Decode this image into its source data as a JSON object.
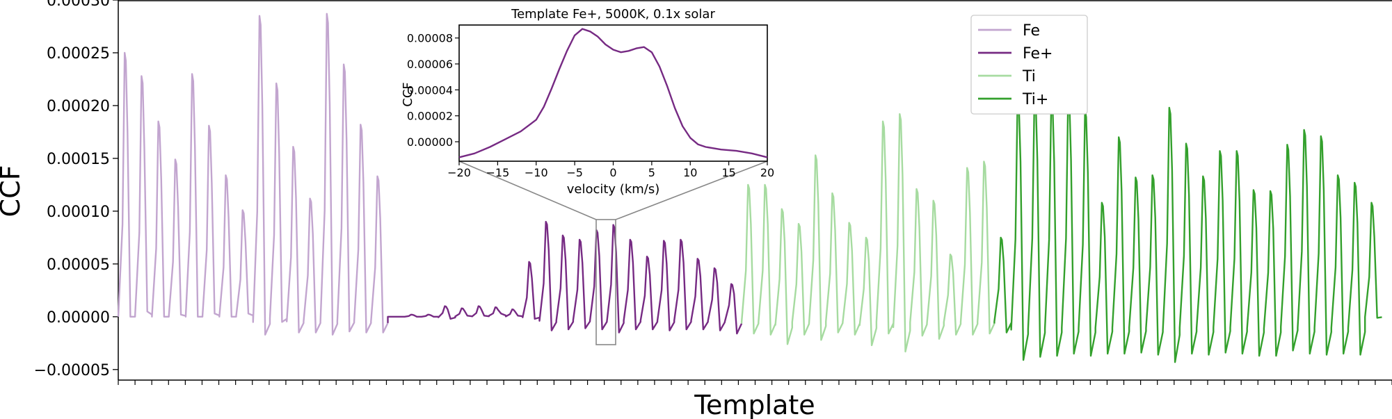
{
  "chart_data": [
    {
      "id": "main",
      "type": "line",
      "title": "",
      "xlabel": "Template",
      "ylabel": "CCF",
      "ylim": [
        -6e-05,
        0.0003
      ],
      "yticks": [
        -5e-05,
        0.0,
        5e-05,
        0.0001,
        0.00015,
        0.0002,
        0.00025,
        0.0003
      ],
      "ytick_labels": [
        "−0.00005",
        "0.00000",
        "0.00005",
        "0.00010",
        "0.00015",
        "0.00020",
        "0.00025",
        "0.00030"
      ],
      "xtick_count": 76,
      "xtick_labels_shown": false,
      "grid": false,
      "legend": {
        "position": "top-right",
        "entries": [
          "Fe",
          "Fe+",
          "Ti",
          "Ti+"
        ]
      },
      "series": [
        {
          "name": "Fe",
          "color": "#c2a5cf",
          "peaks": [
            0.00025,
            0.000228,
            0.000185,
            0.000149,
            0.00023,
            0.000181,
            0.000134,
            0.000101,
            0.000285,
            0.000221,
            0.000161,
            0.000112,
            0.000287,
            0.000239,
            0.000182,
            0.000133
          ],
          "troughs": [
            0.0,
            5e-06,
            0.0,
            2e-06,
            0.0,
            3e-06,
            0.0,
            3e-06,
            -1.7e-05,
            -5e-06,
            -1.5e-05,
            -1.5e-05,
            -1.7e-05,
            -1.4e-05,
            -1.5e-05,
            -1.5e-05
          ]
        },
        {
          "name": "Fe+",
          "color": "#762a83",
          "peaks": [
            0.0,
            2e-06,
            2e-06,
            1e-05,
            8e-06,
            1e-05,
            9e-06,
            7e-06,
            5.2e-05,
            9e-05,
            7.7e-05,
            7.3e-05,
            8.2e-05,
            8.7e-05,
            7.3e-05,
            5.7e-05,
            7.2e-05,
            7.3e-05,
            5.5e-05,
            4.6e-05,
            3.1e-05
          ],
          "troughs": [
            0.0,
            0.0,
            0.0,
            -2e-06,
            1e-06,
            1e-06,
            3e-06,
            1e-06,
            -2e-06,
            -1.3e-05,
            -1.2e-05,
            -1.1e-05,
            -1.2e-05,
            -1.5e-05,
            -1.2e-05,
            -1.2e-05,
            -1.3e-05,
            -1.2e-05,
            -1.2e-05,
            -1.3e-05,
            -1.6e-05
          ]
        },
        {
          "name": "Ti",
          "color": "#a6dba0",
          "peaks": [
            0.000125,
            0.000125,
            0.000102,
            8.8e-05,
            0.000153,
            0.000117,
            8.9e-05,
            7.5e-05,
            0.000185,
            0.000192,
            0.000121,
            0.00011,
            5.9e-05,
            0.000141,
            0.000147
          ],
          "troughs": [
            -1.6e-05,
            -1.7e-05,
            -2.6e-05,
            -1.7e-05,
            -2.2e-05,
            -1.5e-05,
            -1.7e-05,
            -2.7e-05,
            -1.6e-05,
            -3.3e-05,
            -1.8e-05,
            -2.1e-05,
            -1.7e-05,
            -1.7e-05,
            -1.6e-05
          ]
        },
        {
          "name": "Ti+",
          "color": "#33a02c",
          "peaks": [
            7.5e-05,
            0.00021,
            0.000212,
            0.000209,
            0.000212,
            0.000195,
            0.000108,
            0.00017,
            0.000132,
            0.000134,
            0.000198,
            0.000164,
            0.000133,
            0.000157,
            0.000157,
            0.00012,
            0.000119,
            0.000163,
            0.000177,
            0.000171,
            0.000134,
            0.000127,
            0.000108
          ],
          "troughs": [
            -1.5e-05,
            -4.1e-05,
            -3.8e-05,
            -3.7e-05,
            -3.5e-05,
            -3.7e-05,
            -3.5e-05,
            -3.5e-05,
            -3.4e-05,
            -3.6e-05,
            -4.3e-05,
            -3.5e-05,
            -3.6e-05,
            -3.4e-05,
            -3.5e-05,
            -3.7e-05,
            -3.7e-05,
            -3.2e-05,
            -3.5e-05,
            -3.6e-05,
            -3.5e-05,
            -3.6e-05,
            -1e-06
          ]
        }
      ]
    },
    {
      "id": "inset",
      "type": "line",
      "title": "Template Fe+, 5000K, 0.1x solar",
      "xlabel": "velocity (km/s)",
      "ylabel": "CCF",
      "xlim": [
        -20,
        20
      ],
      "ylim": [
        -1.5e-05,
        9e-05
      ],
      "xticks": [
        -20,
        -15,
        -10,
        -5,
        0,
        5,
        10,
        15,
        20
      ],
      "xtick_labels": [
        "−20",
        "−15",
        "−10",
        "−5",
        "0",
        "5",
        "10",
        "15",
        "20"
      ],
      "yticks": [
        0.0,
        2e-05,
        4e-05,
        6e-05,
        8e-05
      ],
      "ytick_labels": [
        "0.00000",
        "0.00002",
        "0.00004",
        "0.00006",
        "0.00008"
      ],
      "series": [
        {
          "name": "Fe+",
          "color": "#762a83",
          "x": [
            -20,
            -18,
            -16,
            -14,
            -12,
            -10,
            -9,
            -8,
            -7,
            -6,
            -5,
            -4,
            -3,
            -2,
            -1,
            0,
            1,
            2,
            3,
            4,
            5,
            6,
            7,
            8,
            9,
            10,
            11,
            12,
            14,
            16,
            18,
            20
          ],
          "y": [
            -1.2e-05,
            -9e-06,
            -4e-06,
            2e-06,
            8e-06,
            1.7e-05,
            2.7e-05,
            4.1e-05,
            5.6e-05,
            7e-05,
            8.2e-05,
            8.7e-05,
            8.5e-05,
            8.1e-05,
            7.5e-05,
            7.1e-05,
            6.9e-05,
            7e-05,
            7.2e-05,
            7.3e-05,
            6.9e-05,
            5.8e-05,
            4.3e-05,
            2.6e-05,
            1.2e-05,
            3e-06,
            -2e-06,
            -4e-06,
            -6e-06,
            -7e-06,
            -9e-06,
            -1.2e-05
          ]
        }
      ]
    }
  ]
}
